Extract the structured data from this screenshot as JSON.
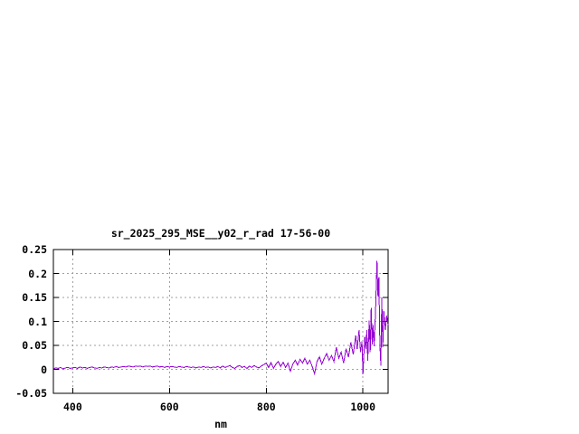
{
  "window": {
    "background": "#ffffff"
  },
  "chart_data": {
    "type": "line",
    "title": "sr_2025_295_MSE__y02_r_rad 17-56-00",
    "xlabel": "nm",
    "ylabel": "",
    "xlim": [
      360,
      1052
    ],
    "ylim": [
      -0.05,
      0.25
    ],
    "grid": true,
    "legend": "none",
    "colors": {
      "line": "#9400d3",
      "grid": "#a0a0a0",
      "border": "#000000",
      "text": "#000000",
      "background": "#ffffff"
    },
    "x_ticks": [
      {
        "value": 400,
        "label": "400"
      },
      {
        "value": 600,
        "label": "600"
      },
      {
        "value": 800,
        "label": "800"
      },
      {
        "value": 1000,
        "label": "1000"
      }
    ],
    "y_ticks": [
      {
        "value": -0.05,
        "label": "-0.05"
      },
      {
        "value": 0,
        "label": "0"
      },
      {
        "value": 0.05,
        "label": "0.05"
      },
      {
        "value": 0.1,
        "label": "0.1"
      },
      {
        "value": 0.15,
        "label": "0.15"
      },
      {
        "value": 0.2,
        "label": "0.2"
      },
      {
        "value": 0.25,
        "label": "0.25"
      }
    ],
    "series": [
      {
        "name": "sr_2025_295_MSE__y02_r_rad",
        "color": "#9400d3",
        "points": [
          [
            360,
            0.001
          ],
          [
            365,
            0.003
          ],
          [
            370,
            0.002
          ],
          [
            375,
            0.004
          ],
          [
            380,
            0.001
          ],
          [
            385,
            0.003
          ],
          [
            390,
            0.004
          ],
          [
            395,
            0.002
          ],
          [
            400,
            0.003
          ],
          [
            405,
            0.004
          ],
          [
            410,
            0.002
          ],
          [
            415,
            0.005
          ],
          [
            420,
            0.003
          ],
          [
            425,
            0.004
          ],
          [
            430,
            0.002
          ],
          [
            435,
            0.004
          ],
          [
            440,
            0.005
          ],
          [
            445,
            0.003
          ],
          [
            450,
            0.002
          ],
          [
            455,
            0.004
          ],
          [
            460,
            0.003
          ],
          [
            465,
            0.005
          ],
          [
            470,
            0.004
          ],
          [
            475,
            0.003
          ],
          [
            480,
            0.005
          ],
          [
            485,
            0.004
          ],
          [
            490,
            0.006
          ],
          [
            495,
            0.004
          ],
          [
            500,
            0.005
          ],
          [
            505,
            0.006
          ],
          [
            510,
            0.005
          ],
          [
            515,
            0.007
          ],
          [
            520,
            0.006
          ],
          [
            525,
            0.005
          ],
          [
            530,
            0.007
          ],
          [
            535,
            0.006
          ],
          [
            540,
            0.007
          ],
          [
            545,
            0.005
          ],
          [
            550,
            0.007
          ],
          [
            555,
            0.006
          ],
          [
            560,
            0.007
          ],
          [
            565,
            0.005
          ],
          [
            570,
            0.006
          ],
          [
            575,
            0.007
          ],
          [
            580,
            0.005
          ],
          [
            585,
            0.006
          ],
          [
            590,
            0.004
          ],
          [
            595,
            0.006
          ],
          [
            600,
            0.005
          ],
          [
            605,
            0.006
          ],
          [
            610,
            0.005
          ],
          [
            615,
            0.004
          ],
          [
            620,
            0.006
          ],
          [
            625,
            0.005
          ],
          [
            630,
            0.004
          ],
          [
            635,
            0.006
          ],
          [
            640,
            0.005
          ],
          [
            645,
            0.004
          ],
          [
            650,
            0.005
          ],
          [
            655,
            0.003
          ],
          [
            660,
            0.005
          ],
          [
            665,
            0.004
          ],
          [
            670,
            0.006
          ],
          [
            675,
            0.004
          ],
          [
            680,
            0.005
          ],
          [
            685,
            0.003
          ],
          [
            690,
            0.005
          ],
          [
            695,
            0.004
          ],
          [
            700,
            0.006
          ],
          [
            705,
            0.003
          ],
          [
            710,
            0.007
          ],
          [
            715,
            0.004
          ],
          [
            720,
            0.006
          ],
          [
            725,
            0.008
          ],
          [
            730,
            0.004
          ],
          [
            735,
            0.002
          ],
          [
            740,
            0.006
          ],
          [
            745,
            0.008
          ],
          [
            750,
            0.004
          ],
          [
            755,
            0.006
          ],
          [
            760,
            0.002
          ],
          [
            765,
            0.007
          ],
          [
            770,
            0.004
          ],
          [
            775,
            0.008
          ],
          [
            780,
            0.005
          ],
          [
            785,
            0.003
          ],
          [
            790,
            0.007
          ],
          [
            795,
            0.01
          ],
          [
            800,
            0.013
          ],
          [
            805,
            0.004
          ],
          [
            810,
            0.014
          ],
          [
            815,
            0.002
          ],
          [
            820,
            0.011
          ],
          [
            825,
            0.016
          ],
          [
            830,
            0.006
          ],
          [
            835,
            0.015
          ],
          [
            840,
            0.004
          ],
          [
            845,
            0.013
          ],
          [
            850,
            -0.004
          ],
          [
            855,
            0.011
          ],
          [
            860,
            0.019
          ],
          [
            865,
            0.009
          ],
          [
            870,
            0.021
          ],
          [
            875,
            0.013
          ],
          [
            880,
            0.023
          ],
          [
            885,
            0.011
          ],
          [
            890,
            0.019
          ],
          [
            895,
            0.006
          ],
          [
            900,
            -0.009
          ],
          [
            905,
            0.016
          ],
          [
            910,
            0.026
          ],
          [
            915,
            0.011
          ],
          [
            920,
            0.023
          ],
          [
            925,
            0.033
          ],
          [
            930,
            0.019
          ],
          [
            935,
            0.029
          ],
          [
            940,
            0.016
          ],
          [
            945,
            0.046
          ],
          [
            950,
            0.023
          ],
          [
            955,
            0.036
          ],
          [
            960,
            0.013
          ],
          [
            965,
            0.043
          ],
          [
            970,
            0.026
          ],
          [
            975,
            0.056
          ],
          [
            980,
            0.031
          ],
          [
            985,
            0.071
          ],
          [
            988,
            0.042
          ],
          [
            992,
            0.082
          ],
          [
            995,
            0.036
          ],
          [
            998,
            0.058
          ],
          [
            1000,
            -0.01
          ],
          [
            1002,
            0.035
          ],
          [
            1004,
            0.068
          ],
          [
            1006,
            0.042
          ],
          [
            1008,
            0.082
          ],
          [
            1010,
            0.018
          ],
          [
            1013,
            0.102
          ],
          [
            1015,
            0.036
          ],
          [
            1017,
            0.128
          ],
          [
            1019,
            0.052
          ],
          [
            1021,
            0.092
          ],
          [
            1023,
            0.048
          ],
          [
            1026,
            0.12
          ],
          [
            1029,
            0.226
          ],
          [
            1031,
            0.152
          ],
          [
            1033,
            0.192
          ],
          [
            1035,
            0.052
          ],
          [
            1037,
            0.008
          ],
          [
            1039,
            0.15
          ],
          [
            1041,
            0.046
          ],
          [
            1043,
            0.122
          ],
          [
            1046,
            0.082
          ],
          [
            1049,
            0.112
          ],
          [
            1052,
            0.092
          ]
        ]
      }
    ]
  }
}
